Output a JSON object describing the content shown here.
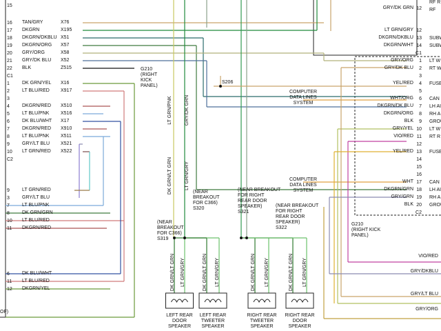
{
  "left_rows": [
    {
      "pin": "15"
    },
    {
      "pin": "16",
      "wire": "TAN/GRY",
      "circuit": "X76"
    },
    {
      "pin": "17",
      "wire": "DKGRN",
      "circuit": "X195"
    },
    {
      "pin": "18",
      "wire": "DKGRN/DKBLU",
      "circuit": "X51"
    },
    {
      "pin": "19",
      "wire": "DKGRN/ORG",
      "circuit": "X57"
    },
    {
      "pin": "20",
      "wire": "GRY/ORG",
      "circuit": "X58"
    },
    {
      "pin": "21",
      "wire": "GRY/DK BLU",
      "circuit": "X52"
    },
    {
      "pin": "22",
      "wire": "BLK",
      "circuit": "Z515"
    },
    {
      "pin": "1",
      "wire": "DK GRN/YEL",
      "circuit": "X16"
    },
    {
      "pin": "2",
      "wire": "LT BLU/RED",
      "circuit": "X917"
    },
    {
      "pin": "3"
    },
    {
      "pin": "4",
      "wire": "DKGRN/RED",
      "circuit": "X510"
    },
    {
      "pin": "5",
      "wire": "LT BLU/PNK",
      "circuit": "X516"
    },
    {
      "pin": "6",
      "wire": "DK BLU/WHT",
      "circuit": "X17"
    },
    {
      "pin": "7",
      "wire": "DKGRN/RED",
      "circuit": "X910"
    },
    {
      "pin": "8",
      "wire": "LT BLU/PNK",
      "circuit": "X511"
    },
    {
      "pin": "9",
      "wire": "GRY/LT BLU",
      "circuit": "X521"
    },
    {
      "pin": "10",
      "wire": "LT GRN/RED",
      "circuit": "X522"
    },
    {
      "pin": "9",
      "wire": "LT GRN/RED"
    },
    {
      "pin": "3",
      "wire": "GRY/LT BLU"
    },
    {
      "pin": "7",
      "wire": "LT BLU/PNK"
    },
    {
      "pin": "8",
      "wire": "DK GRN/GRN"
    },
    {
      "pin": "10",
      "wire": "LT BLU/RED"
    },
    {
      "pin": "11",
      "wire": "DKGRN/RED"
    },
    {
      "pin": "6",
      "wire": "DK BLU/WHT"
    },
    {
      "pin": "11",
      "wire": "LT BLU/RED"
    },
    {
      "pin": "12",
      "wire": "DKGRN/YEL"
    }
  ],
  "left_connectors": [
    "C1",
    "C2",
    "OF)"
  ],
  "right_rows": [
    {
      "wire": "GRY/DK GRN",
      "pin": "12"
    },
    {
      "wire": "LT GRN/GRY",
      "pin": "12"
    },
    {
      "wire": "DKGRN/DKBLU",
      "pin": "13"
    },
    {
      "wire": "DKGRN/WHT",
      "pin": "14"
    },
    {
      "pin": "C1"
    },
    {
      "wire": "GRY/ORG",
      "pin": "1"
    },
    {
      "wire": "GRY/DK BLU",
      "pin": "2"
    },
    {
      "pin": "3"
    },
    {
      "wire": "YEL/RED",
      "pin": "4"
    },
    {
      "pin": "5"
    },
    {
      "wire": "WHT/ORG",
      "pin": "6"
    },
    {
      "wire": "DKGRN/DK BLU",
      "pin": "7"
    },
    {
      "wire": "DKGRN/ORG",
      "pin": "8"
    },
    {
      "wire": "BLK",
      "pin": "9"
    },
    {
      "wire": "GRY/YEL",
      "pin": "10"
    },
    {
      "wire": "VIO/RED",
      "pin": "11"
    },
    {
      "pin": "12"
    },
    {
      "wire": "YEL/RED",
      "pin": "13"
    },
    {
      "pin": "14"
    },
    {
      "pin": "15"
    },
    {
      "pin": "16"
    },
    {
      "wire": "WHT",
      "pin": "17"
    },
    {
      "wire": "DKGRN/GRN",
      "pin": "18"
    },
    {
      "wire": "GRY/GRN",
      "pin": "19"
    },
    {
      "wire": "BLK",
      "pin": "20"
    },
    {
      "pin": "C2"
    }
  ],
  "right_functions": [
    "RF R",
    "RF",
    "SUBW",
    "SUBW",
    "LT W",
    "RT W",
    "FUSE",
    "CAN",
    "LH AU",
    "RH A",
    "GROU",
    "LT W",
    "RT R",
    "FUSE",
    "CAN",
    "LH AU",
    "RH A",
    "GROU"
  ],
  "lower_right_wires": [
    "VIO/RED",
    "GRY/DKBLU",
    "GRY/LT BLU",
    "GRY/ORG"
  ],
  "data_lines": [
    [
      "COMPUTER",
      "DATA LINES",
      "SYSTEM"
    ],
    [
      "COMPUTER",
      "DATA LINES",
      "SYSTEM"
    ]
  ],
  "splice_s206": "S206",
  "grounds": [
    [
      "G210",
      "(RIGHT",
      "KICK",
      "PANEL)"
    ],
    [
      "G210",
      "(RIGHT KICK",
      "PANEL)"
    ]
  ],
  "vertical_wires": [
    "LT GRN/PNK",
    "GRY/DK GRN",
    "DK GRN/LT GRN",
    "LT GRN/GRY"
  ],
  "splices": [
    [
      "(NEAR",
      "BREAKOUT",
      "FOR C366)",
      "S319"
    ],
    [
      "(NEAR",
      "BREAKOUT",
      "FOR C366)",
      "S320"
    ],
    [
      "(NEAR BREAKOUT",
      "FOR RIGHT",
      "REAR DOOR",
      "SPEAKER)",
      "S321"
    ],
    [
      "(NEAR BREAKOUT",
      "FOR RIGHT",
      "REAR DOOR",
      "SPEAKER)",
      "S322"
    ]
  ],
  "speakers": [
    {
      "wires": [
        "DK GRN/LT GRN",
        "LT GRN/GRY"
      ],
      "name": [
        "LEFT REAR",
        "DOOR",
        "SPEAKER"
      ]
    },
    {
      "wires": [
        "DK GRN/LT GRN",
        "LT GRN/GRY"
      ],
      "name": [
        "LEFT REAR",
        "TWEETER",
        "SPEAKER"
      ]
    },
    {
      "wires": [
        "DK GRN/LT GRN",
        "LT GRN/GRY"
      ],
      "name": [
        "RIGHT REAR",
        "TWEETER",
        "SPEAKER"
      ]
    },
    {
      "wires": [
        "DK GRN/LT GRN",
        "LT GRN/GRY"
      ],
      "name": [
        "RIGHT REAR",
        "DOOR",
        "SPEAKER"
      ]
    }
  ]
}
